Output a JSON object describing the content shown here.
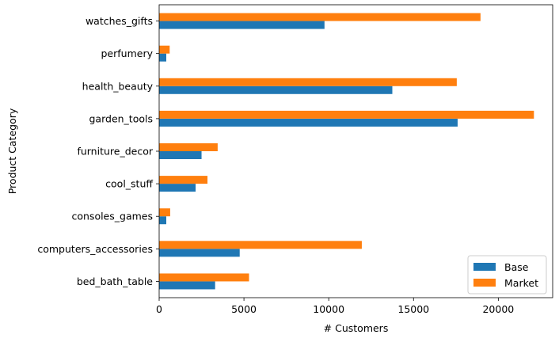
{
  "chart_data": {
    "type": "bar",
    "orientation": "horizontal",
    "categories": [
      "bed_bath_table",
      "computers_accessories",
      "consoles_games",
      "cool_stuff",
      "furniture_decor",
      "garden_tools",
      "health_beauty",
      "perfumery",
      "watches_gifts"
    ],
    "series": [
      {
        "name": "Base",
        "color": "#1f77b4",
        "values": [
          3300,
          4750,
          420,
          2150,
          2500,
          17600,
          13750,
          420,
          9750
        ]
      },
      {
        "name": "Market",
        "color": "#ff7f0e",
        "values": [
          5300,
          11950,
          650,
          2850,
          3450,
          22100,
          17550,
          620,
          18950
        ]
      }
    ],
    "xlabel": "# Customers",
    "ylabel": "Product Category",
    "xlim": [
      0,
      23205
    ],
    "xticks": [
      0,
      5000,
      10000,
      15000,
      20000
    ],
    "grid": false,
    "legend_position": "lower-right"
  }
}
